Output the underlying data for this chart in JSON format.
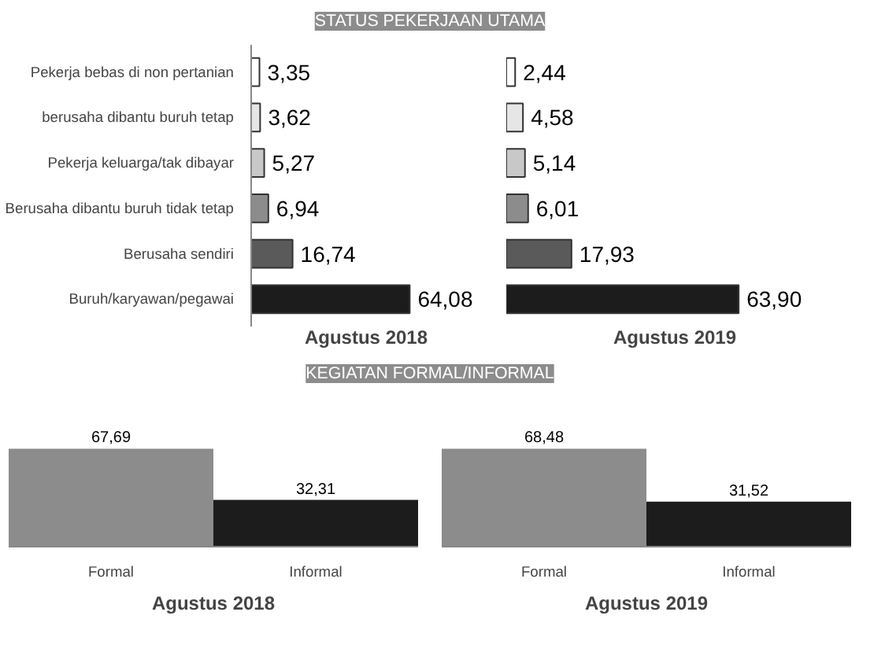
{
  "chart_data": [
    {
      "type": "bar",
      "orientation": "horizontal",
      "title": "STATUS PEKERJAAN UTAMA",
      "xlabel": "Agustus 2018",
      "tick_labels": "y",
      "categories": [
        "Pekerja bebas di non pertanian",
        "berusaha dibantu buruh tetap",
        "Pekerja keluarga/tak dibayar",
        "Berusaha dibantu buruh tidak tetap",
        "Berusaha sendiri",
        "Buruh/karyawan/pegawai"
      ],
      "values": [
        3.35,
        3.62,
        5.27,
        6.94,
        16.74,
        64.08
      ],
      "value_labels": [
        "3,35",
        "3,62",
        "5,27",
        "6,94",
        "16,74",
        "64,08"
      ],
      "colors": [
        "#ffffff",
        "#e6e6e6",
        "#c8c8c8",
        "#8c8c8c",
        "#5a5a5a",
        "#1c1c1c"
      ]
    },
    {
      "type": "bar",
      "orientation": "horizontal",
      "xlabel": "Agustus 2019",
      "tick_labels": false,
      "categories": [
        null,
        null,
        null,
        null,
        null,
        null
      ],
      "values": [
        2.44,
        4.58,
        5.14,
        6.01,
        17.93,
        63.9
      ],
      "value_labels": [
        "2,44",
        "4,58",
        "5,14",
        "6,01",
        "17,93",
        "63,90"
      ],
      "colors": [
        "#ffffff",
        "#e6e6e6",
        "#c8c8c8",
        "#8c8c8c",
        "#5a5a5a",
        "#1c1c1c"
      ]
    },
    {
      "type": "bar",
      "title": "KEGIATAN FORMAL/INFORMAL",
      "xlabel": "Agustus 2018",
      "tick_labels": "x",
      "categories": [
        "Formal",
        "Informal"
      ],
      "values": [
        67.69,
        32.31
      ],
      "value_labels": [
        "67,69",
        "32,31"
      ],
      "colors": [
        "#8c8c8c",
        "#1c1c1c"
      ]
    },
    {
      "type": "bar",
      "xlabel": "Agustus 2019",
      "tick_labels": "x",
      "categories": [
        "Formal",
        "Informal"
      ],
      "values": [
        68.48,
        31.52
      ],
      "value_labels": [
        "68,48",
        "31,52"
      ],
      "colors": [
        "#8c8c8c",
        "#1c1c1c"
      ]
    }
  ]
}
